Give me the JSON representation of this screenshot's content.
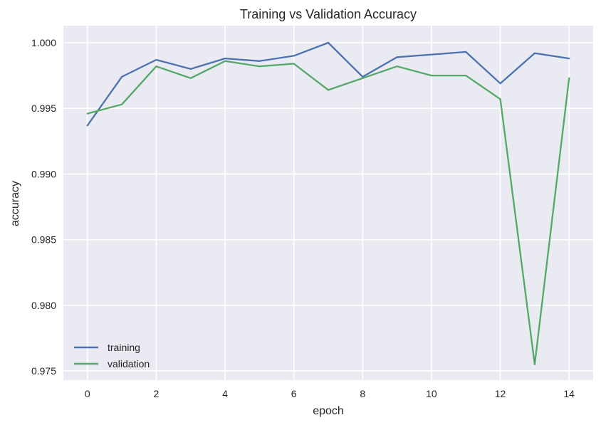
{
  "chart_data": {
    "type": "line",
    "title": "Training vs Validation Accuracy",
    "xlabel": "epoch",
    "ylabel": "accuracy",
    "x": [
      0,
      1,
      2,
      3,
      4,
      5,
      6,
      7,
      8,
      9,
      10,
      11,
      12,
      13,
      14
    ],
    "xticks": [
      0,
      2,
      4,
      6,
      8,
      10,
      12,
      14
    ],
    "xtick_labels": [
      "0",
      "2",
      "4",
      "6",
      "8",
      "10",
      "12",
      "14"
    ],
    "yticks": [
      0.975,
      0.98,
      0.985,
      0.99,
      0.995,
      1.0
    ],
    "ytick_labels": [
      "0.975",
      "0.980",
      "0.985",
      "0.990",
      "0.995",
      "1.000"
    ],
    "xlim": [
      -0.7,
      14.7
    ],
    "ylim": [
      0.9743,
      1.0013
    ],
    "grid": true,
    "legend_position": "lower-left",
    "series": [
      {
        "name": "training",
        "color": "#4c72b0",
        "values": [
          0.9937,
          0.9974,
          0.9987,
          0.998,
          0.9988,
          0.9986,
          0.999,
          1.0,
          0.9974,
          0.9989,
          0.9991,
          0.9993,
          0.9969,
          0.9992,
          0.9988
        ]
      },
      {
        "name": "validation",
        "color": "#55a868",
        "values": [
          0.9946,
          0.9953,
          0.9982,
          0.9973,
          0.9986,
          0.9982,
          0.9984,
          0.9964,
          0.9973,
          0.9982,
          0.9975,
          0.9975,
          0.9957,
          0.9755,
          0.9973
        ]
      }
    ]
  }
}
